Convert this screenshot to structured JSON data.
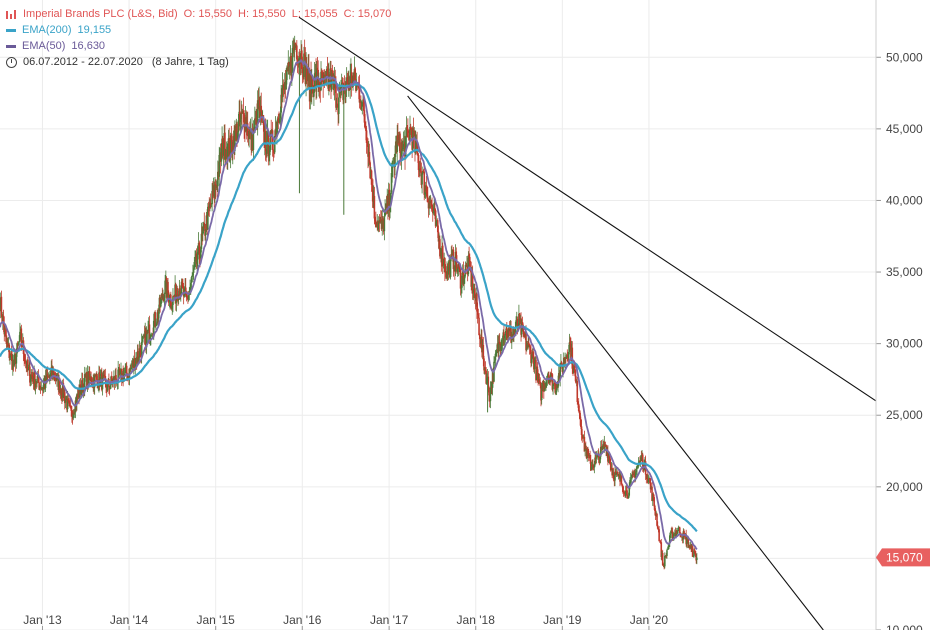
{
  "legend": {
    "instrument": "Imperial Brands PLC (L&S, Bid)",
    "ohlc": {
      "o_label": "O:",
      "o": "15,550",
      "h_label": "H:",
      "h": "15,550",
      "l_label": "L:",
      "l": "15,055",
      "c_label": "C:",
      "c": "15,070"
    },
    "ema200_label": "EMA(200)",
    "ema200_value": "19,155",
    "ema50_label": "EMA(50)",
    "ema50_value": "16,630",
    "range": "06.07.2012 - 22.07.2020",
    "range_detail": "(8 Jahre, 1 Tag)"
  },
  "last_price": "15,070",
  "colors": {
    "up": "#4a7a38",
    "down": "#c0392b",
    "ema200": "#3aa3c8",
    "ema50": "#7a6aa8",
    "price_tag": "#e86060",
    "trend": "#111111"
  },
  "chart_data": {
    "type": "candlestick",
    "title": "Imperial Brands PLC (L&S, Bid)",
    "yaxis_side": "right",
    "ylim": [
      10000,
      54000
    ],
    "y_ticks": [
      10000,
      15000,
      20000,
      25000,
      30000,
      35000,
      40000,
      45000,
      50000
    ],
    "y_tick_labels": [
      "10,000",
      "15,000",
      "20,000",
      "25,000",
      "30,000",
      "35,000",
      "40,000",
      "45,000",
      "50,000"
    ],
    "xlim": [
      "2012-07-06",
      "2022-08-15"
    ],
    "x_ticks": [
      "2013-01-01",
      "2014-01-01",
      "2015-01-01",
      "2016-01-01",
      "2017-01-01",
      "2018-01-01",
      "2019-01-01",
      "2020-01-01"
    ],
    "x_tick_labels": [
      "Jan '13",
      "Jan '14",
      "Jan '15",
      "Jan '16",
      "Jan '17",
      "Jan '18",
      "Jan '19",
      "Jan '20"
    ],
    "grid": true,
    "price_path": [
      [
        "2012-07-06",
        33000
      ],
      [
        "2012-08-01",
        30000
      ],
      [
        "2012-09-01",
        28500
      ],
      [
        "2012-10-01",
        30500
      ],
      [
        "2012-11-01",
        28000
      ],
      [
        "2012-12-01",
        27500
      ],
      [
        "2013-01-01",
        27000
      ],
      [
        "2013-02-15",
        28000
      ],
      [
        "2013-04-01",
        26500
      ],
      [
        "2013-05-01",
        25000
      ],
      [
        "2013-06-01",
        26500
      ],
      [
        "2013-07-01",
        27500
      ],
      [
        "2013-09-01",
        27500
      ],
      [
        "2013-10-01",
        27000
      ],
      [
        "2013-11-01",
        27500
      ],
      [
        "2014-01-01",
        28000
      ],
      [
        "2014-03-01",
        30000
      ],
      [
        "2014-05-01",
        32000
      ],
      [
        "2014-06-01",
        34000
      ],
      [
        "2014-07-01",
        33000
      ],
      [
        "2014-08-01",
        34000
      ],
      [
        "2014-09-01",
        33000
      ],
      [
        "2014-10-01",
        35000
      ],
      [
        "2014-11-01",
        37000
      ],
      [
        "2014-12-01",
        39000
      ],
      [
        "2015-01-01",
        41000
      ],
      [
        "2015-02-01",
        44000
      ],
      [
        "2015-03-01",
        43500
      ],
      [
        "2015-04-01",
        45000
      ],
      [
        "2015-05-01",
        46000
      ],
      [
        "2015-06-01",
        44000
      ],
      [
        "2015-07-01",
        46500
      ],
      [
        "2015-08-01",
        44000
      ],
      [
        "2015-09-01",
        44000
      ],
      [
        "2015-10-01",
        47000
      ],
      [
        "2015-11-01",
        48500
      ],
      [
        "2015-12-01",
        51000
      ],
      [
        "2016-01-01",
        50000
      ],
      [
        "2016-02-01",
        48000
      ],
      [
        "2016-03-01",
        48500
      ],
      [
        "2016-04-01",
        48000
      ],
      [
        "2016-05-01",
        48500
      ],
      [
        "2016-06-01",
        47000
      ],
      [
        "2016-07-01",
        48000
      ],
      [
        "2016-08-01",
        48500
      ],
      [
        "2016-09-01",
        47500
      ],
      [
        "2016-10-01",
        44500
      ],
      [
        "2016-11-01",
        39000
      ],
      [
        "2016-12-01",
        38000
      ],
      [
        "2017-01-01",
        40000
      ],
      [
        "2017-02-01",
        44000
      ],
      [
        "2017-03-01",
        43500
      ],
      [
        "2017-04-01",
        45000
      ],
      [
        "2017-05-01",
        43000
      ],
      [
        "2017-06-01",
        41000
      ],
      [
        "2017-07-01",
        39500
      ],
      [
        "2017-08-01",
        37000
      ],
      [
        "2017-09-01",
        35000
      ],
      [
        "2017-10-01",
        36000
      ],
      [
        "2017-11-01",
        34500
      ],
      [
        "2017-12-01",
        35500
      ],
      [
        "2018-01-01",
        33000
      ],
      [
        "2018-02-01",
        29000
      ],
      [
        "2018-03-01",
        26500
      ],
      [
        "2018-04-01",
        29500
      ],
      [
        "2018-05-01",
        31000
      ],
      [
        "2018-06-01",
        30500
      ],
      [
        "2018-07-01",
        31500
      ],
      [
        "2018-08-01",
        30000
      ],
      [
        "2018-09-01",
        29000
      ],
      [
        "2018-10-01",
        26500
      ],
      [
        "2018-11-01",
        28000
      ],
      [
        "2018-12-01",
        27000
      ],
      [
        "2019-01-01",
        28500
      ],
      [
        "2019-02-01",
        30000
      ],
      [
        "2019-03-01",
        27000
      ],
      [
        "2019-04-01",
        23000
      ],
      [
        "2019-05-01",
        21500
      ],
      [
        "2019-06-01",
        22000
      ],
      [
        "2019-07-01",
        23000
      ],
      [
        "2019-08-01",
        21000
      ],
      [
        "2019-09-01",
        20500
      ],
      [
        "2019-10-01",
        19500
      ],
      [
        "2019-11-01",
        21000
      ],
      [
        "2019-12-01",
        22000
      ],
      [
        "2020-01-01",
        20500
      ],
      [
        "2020-02-01",
        18000
      ],
      [
        "2020-03-01",
        14500
      ],
      [
        "2020-04-01",
        16500
      ],
      [
        "2020-05-01",
        17000
      ],
      [
        "2020-06-01",
        16500
      ],
      [
        "2020-07-01",
        15500
      ],
      [
        "2020-07-22",
        15070
      ]
    ],
    "spikes": [
      [
        "2016-06-24",
        39000
      ],
      [
        "2018-02-20",
        25200
      ],
      [
        "2015-12-20",
        40500
      ]
    ],
    "trendlines": [
      {
        "from": [
          "2015-12-18",
          52800
        ],
        "to": [
          "2022-08-15",
          26000
        ]
      },
      {
        "from": [
          "2017-03-20",
          47300
        ],
        "to": [
          "2022-01-05",
          10000
        ]
      }
    ],
    "last": {
      "date": "2020-07-22",
      "value": 15070
    }
  }
}
